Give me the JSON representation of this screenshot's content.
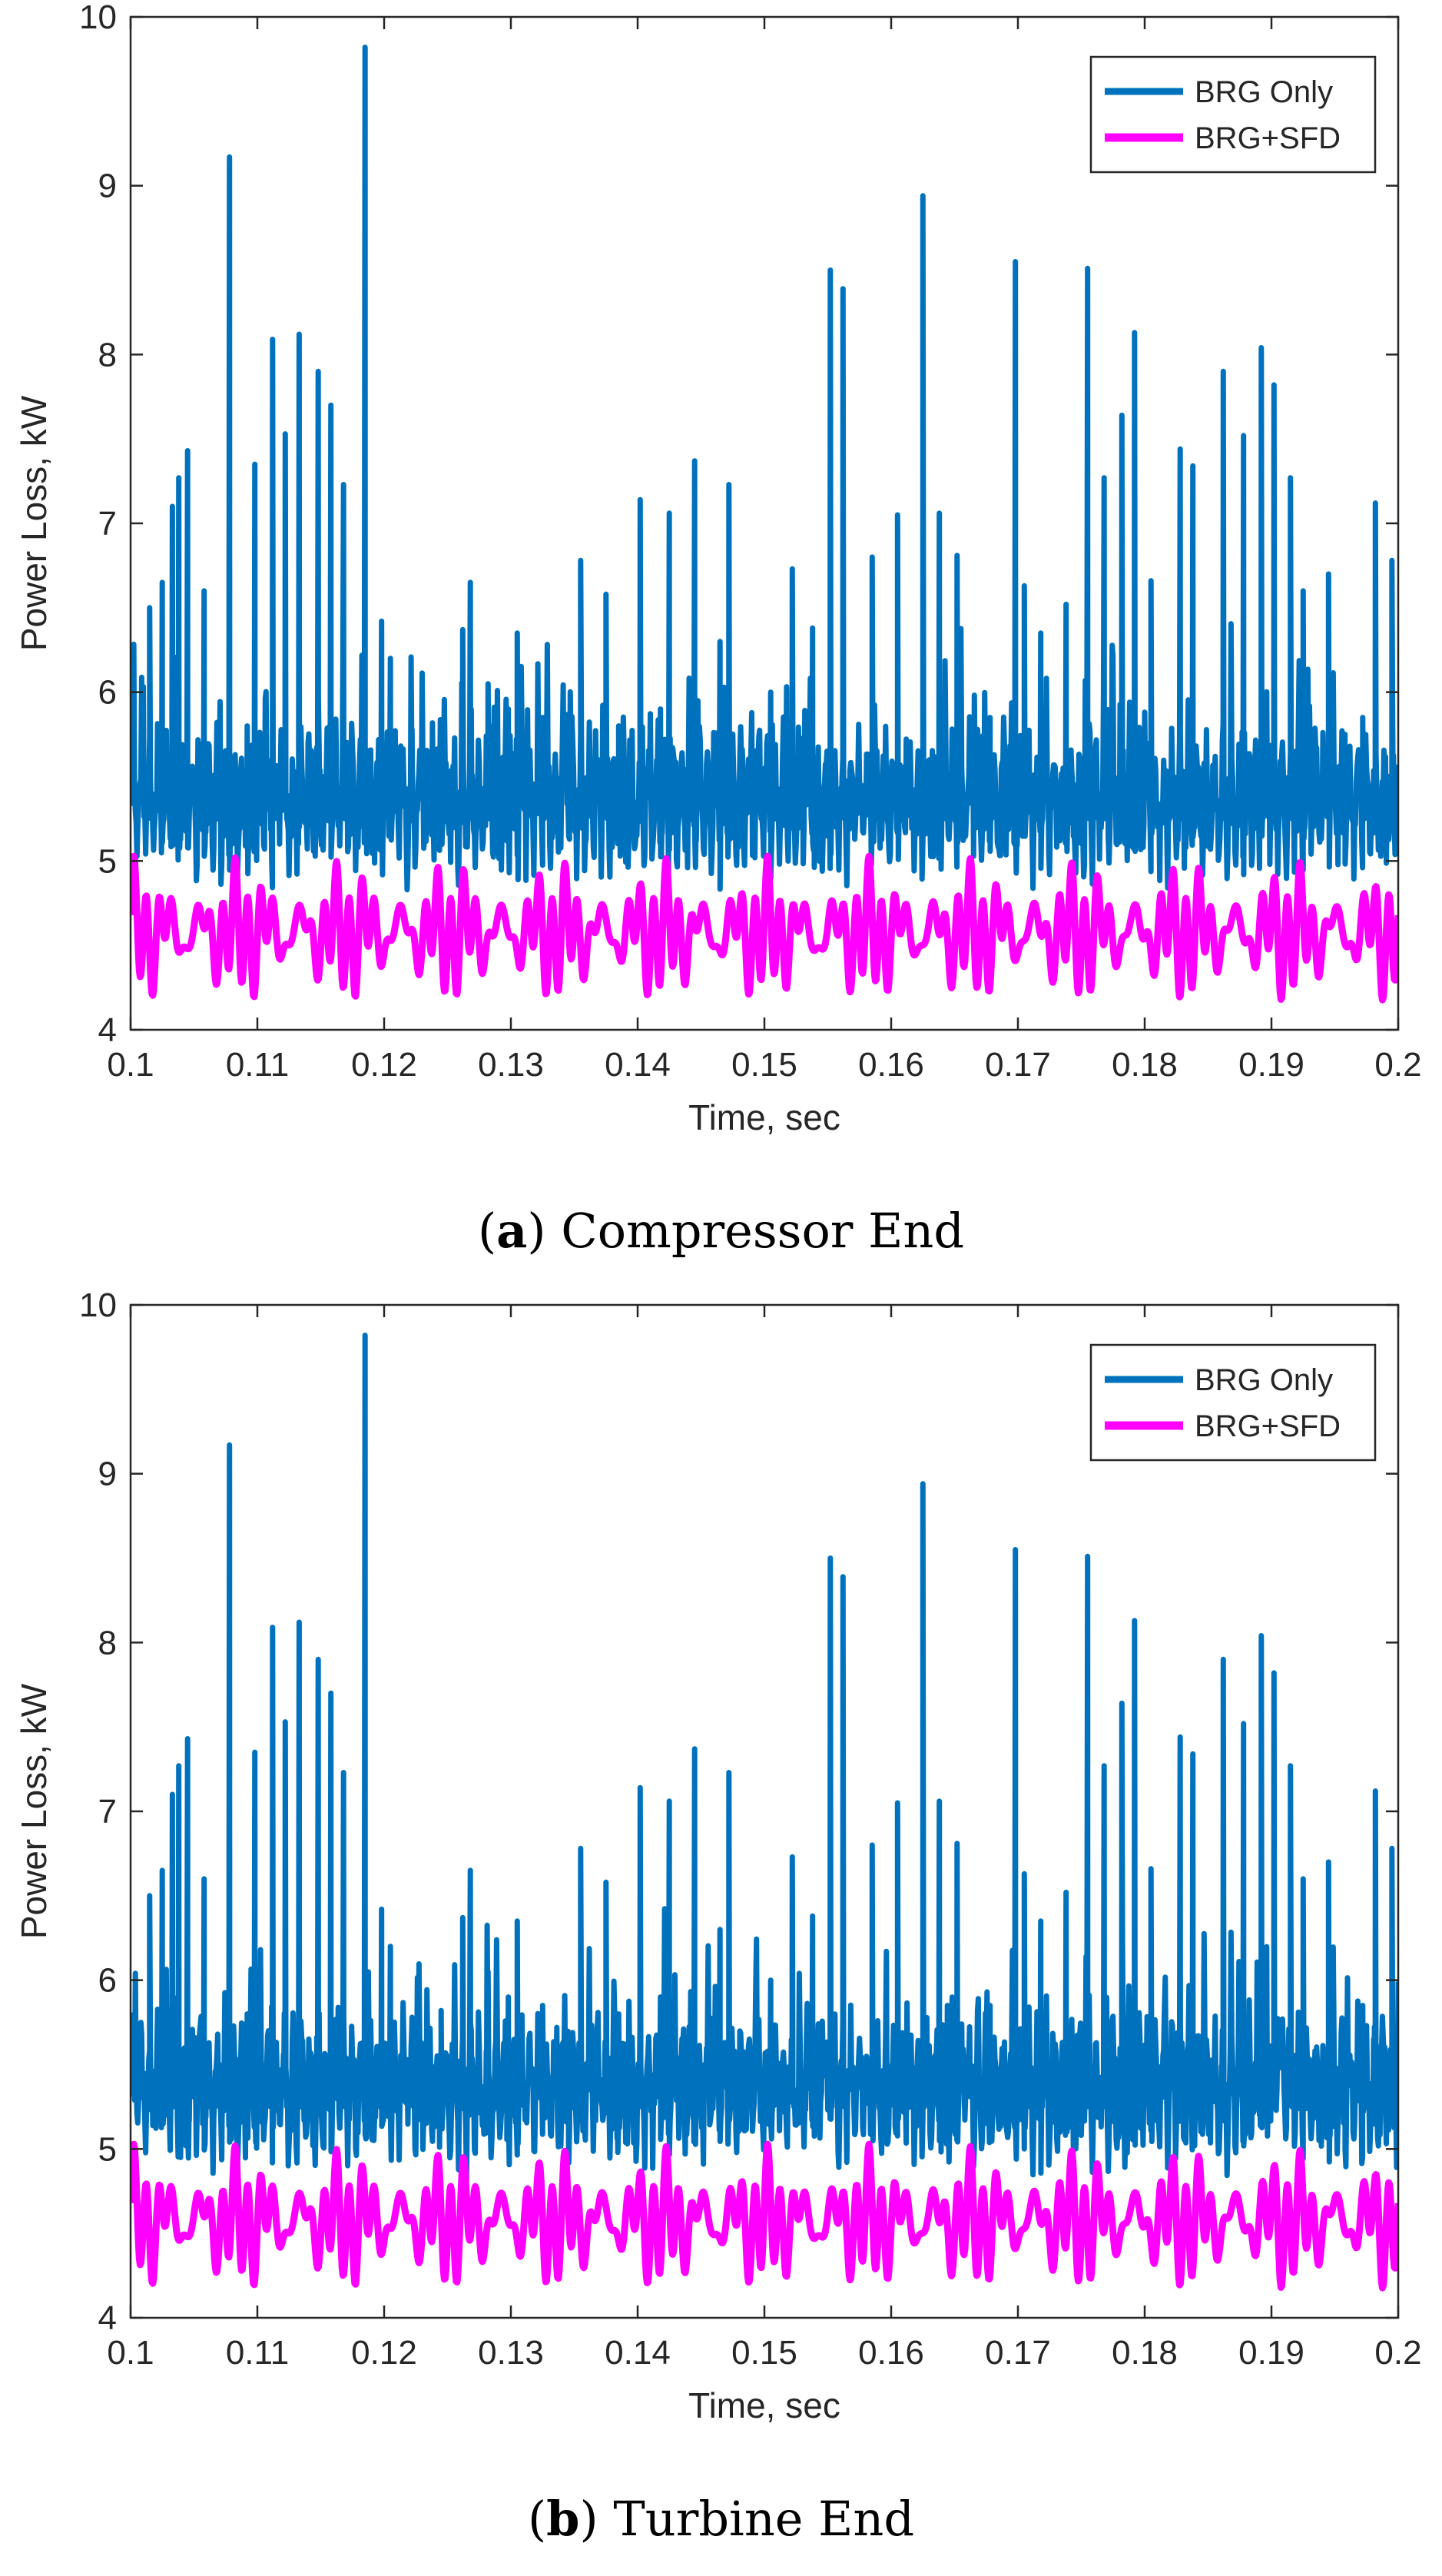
{
  "colors": {
    "brg_only": "#0072BD",
    "brg_sfd": "#FF00FF",
    "axis": "#262626"
  },
  "chart_data": [
    {
      "type": "line",
      "panel": "a",
      "caption_letter": "a",
      "caption_text": "Compressor End",
      "xlabel": "Time, sec",
      "ylabel": "Power Loss, kW",
      "xlim": [
        0.1,
        0.2
      ],
      "ylim": [
        4,
        10
      ],
      "xticks": [
        "0.1",
        "0.11",
        "0.12",
        "0.13",
        "0.14",
        "0.15",
        "0.16",
        "0.17",
        "0.18",
        "0.19",
        "0.2"
      ],
      "yticks": [
        "4",
        "5",
        "6",
        "7",
        "8",
        "9",
        "10"
      ],
      "legend_position": "top-right",
      "series": [
        {
          "name": "BRG Only",
          "color": "#0072BD",
          "baseline": 5.35,
          "osc_amplitude": 0.25,
          "osc_frequency_hz": 1500,
          "spikes": [
            {
              "t": 0.1015,
              "v": 6.5
            },
            {
              "t": 0.1025,
              "v": 6.65
            },
            {
              "t": 0.1033,
              "v": 7.1
            },
            {
              "t": 0.1038,
              "v": 7.27
            },
            {
              "t": 0.1045,
              "v": 7.43
            },
            {
              "t": 0.1058,
              "v": 6.6
            },
            {
              "t": 0.1078,
              "v": 9.17
            },
            {
              "t": 0.1092,
              "v": 5.8
            },
            {
              "t": 0.1098,
              "v": 7.35
            },
            {
              "t": 0.1112,
              "v": 8.09
            },
            {
              "t": 0.1122,
              "v": 7.53
            },
            {
              "t": 0.1133,
              "v": 8.12
            },
            {
              "t": 0.1148,
              "v": 7.9
            },
            {
              "t": 0.1158,
              "v": 7.7
            },
            {
              "t": 0.1168,
              "v": 7.23
            },
            {
              "t": 0.1185,
              "v": 9.82
            },
            {
              "t": 0.1198,
              "v": 6.42
            },
            {
              "t": 0.1205,
              "v": 6.2
            },
            {
              "t": 0.1222,
              "v": 5.78
            },
            {
              "t": 0.1245,
              "v": 5.82
            },
            {
              "t": 0.1262,
              "v": 6.37
            },
            {
              "t": 0.1268,
              "v": 6.65
            },
            {
              "t": 0.1282,
              "v": 6.05
            },
            {
              "t": 0.1298,
              "v": 5.9
            },
            {
              "t": 0.1305,
              "v": 6.35
            },
            {
              "t": 0.1325,
              "v": 5.85
            },
            {
              "t": 0.1355,
              "v": 6.78
            },
            {
              "t": 0.1375,
              "v": 6.58
            },
            {
              "t": 0.1385,
              "v": 5.8
            },
            {
              "t": 0.1402,
              "v": 7.14
            },
            {
              "t": 0.1418,
              "v": 5.9
            },
            {
              "t": 0.1425,
              "v": 7.06
            },
            {
              "t": 0.1445,
              "v": 7.37
            },
            {
              "t": 0.1465,
              "v": 6.3
            },
            {
              "t": 0.1472,
              "v": 7.23
            },
            {
              "t": 0.1505,
              "v": 6.0
            },
            {
              "t": 0.1522,
              "v": 6.73
            },
            {
              "t": 0.1538,
              "v": 6.38
            },
            {
              "t": 0.1552,
              "v": 8.5
            },
            {
              "t": 0.1562,
              "v": 8.39
            },
            {
              "t": 0.1585,
              "v": 6.8
            },
            {
              "t": 0.1605,
              "v": 7.05
            },
            {
              "t": 0.1625,
              "v": 8.94
            },
            {
              "t": 0.1638,
              "v": 7.06
            },
            {
              "t": 0.1652,
              "v": 6.81
            },
            {
              "t": 0.1678,
              "v": 5.85
            },
            {
              "t": 0.1698,
              "v": 8.55
            },
            {
              "t": 0.1705,
              "v": 6.63
            },
            {
              "t": 0.1718,
              "v": 6.35
            },
            {
              "t": 0.1738,
              "v": 6.52
            },
            {
              "t": 0.1755,
              "v": 8.51
            },
            {
              "t": 0.1768,
              "v": 7.27
            },
            {
              "t": 0.1782,
              "v": 7.64
            },
            {
              "t": 0.1792,
              "v": 8.13
            },
            {
              "t": 0.1805,
              "v": 6.66
            },
            {
              "t": 0.1828,
              "v": 7.44
            },
            {
              "t": 0.1838,
              "v": 7.34
            },
            {
              "t": 0.1862,
              "v": 7.9
            },
            {
              "t": 0.1878,
              "v": 7.52
            },
            {
              "t": 0.1892,
              "v": 8.04
            },
            {
              "t": 0.1902,
              "v": 7.82
            },
            {
              "t": 0.1915,
              "v": 7.27
            },
            {
              "t": 0.1925,
              "v": 6.6
            },
            {
              "t": 0.1945,
              "v": 6.7
            },
            {
              "t": 0.1958,
              "v": 5.75
            },
            {
              "t": 0.1972,
              "v": 5.85
            },
            {
              "t": 0.1982,
              "v": 7.12
            },
            {
              "t": 0.1995,
              "v": 6.78
            }
          ]
        },
        {
          "name": "BRG+SFD",
          "color": "#FF00FF",
          "min": 4.18,
          "max": 5.08,
          "osc_frequency_hz": 1000
        }
      ]
    },
    {
      "type": "line",
      "panel": "b",
      "caption_letter": "b",
      "caption_text": "Turbine End",
      "xlabel": "Time, sec",
      "ylabel": "Power Loss, kW",
      "xlim": [
        0.1,
        0.2
      ],
      "ylim": [
        4,
        10
      ],
      "xticks": [
        "0.1",
        "0.11",
        "0.12",
        "0.13",
        "0.14",
        "0.15",
        "0.16",
        "0.17",
        "0.18",
        "0.19",
        "0.2"
      ],
      "yticks": [
        "4",
        "5",
        "6",
        "7",
        "8",
        "9",
        "10"
      ],
      "legend_position": "top-right",
      "series": [
        {
          "name": "BRG Only",
          "color": "#0072BD",
          "baseline": 5.35,
          "osc_amplitude": 0.25,
          "osc_frequency_hz": 1500,
          "spikes": [
            {
              "t": 0.1015,
              "v": 6.5
            },
            {
              "t": 0.1025,
              "v": 6.65
            },
            {
              "t": 0.1033,
              "v": 7.1
            },
            {
              "t": 0.1038,
              "v": 7.27
            },
            {
              "t": 0.1045,
              "v": 7.43
            },
            {
              "t": 0.1058,
              "v": 6.6
            },
            {
              "t": 0.1078,
              "v": 9.17
            },
            {
              "t": 0.1092,
              "v": 5.8
            },
            {
              "t": 0.1098,
              "v": 7.35
            },
            {
              "t": 0.1112,
              "v": 8.09
            },
            {
              "t": 0.1122,
              "v": 7.53
            },
            {
              "t": 0.1133,
              "v": 8.12
            },
            {
              "t": 0.1148,
              "v": 7.9
            },
            {
              "t": 0.1158,
              "v": 7.7
            },
            {
              "t": 0.1168,
              "v": 7.23
            },
            {
              "t": 0.1185,
              "v": 9.82
            },
            {
              "t": 0.1198,
              "v": 6.42
            },
            {
              "t": 0.1205,
              "v": 6.2
            },
            {
              "t": 0.1222,
              "v": 5.78
            },
            {
              "t": 0.1245,
              "v": 5.82
            },
            {
              "t": 0.1262,
              "v": 6.37
            },
            {
              "t": 0.1268,
              "v": 6.65
            },
            {
              "t": 0.1282,
              "v": 6.05
            },
            {
              "t": 0.1298,
              "v": 5.9
            },
            {
              "t": 0.1305,
              "v": 6.35
            },
            {
              "t": 0.1325,
              "v": 5.85
            },
            {
              "t": 0.1355,
              "v": 6.78
            },
            {
              "t": 0.1375,
              "v": 6.58
            },
            {
              "t": 0.1385,
              "v": 5.8
            },
            {
              "t": 0.1402,
              "v": 7.14
            },
            {
              "t": 0.1418,
              "v": 5.9
            },
            {
              "t": 0.1425,
              "v": 7.06
            },
            {
              "t": 0.1445,
              "v": 7.37
            },
            {
              "t": 0.1465,
              "v": 6.3
            },
            {
              "t": 0.1472,
              "v": 7.23
            },
            {
              "t": 0.1505,
              "v": 6.0
            },
            {
              "t": 0.1522,
              "v": 6.73
            },
            {
              "t": 0.1538,
              "v": 6.38
            },
            {
              "t": 0.1552,
              "v": 8.5
            },
            {
              "t": 0.1562,
              "v": 8.39
            },
            {
              "t": 0.1585,
              "v": 6.8
            },
            {
              "t": 0.1605,
              "v": 7.05
            },
            {
              "t": 0.1625,
              "v": 8.94
            },
            {
              "t": 0.1638,
              "v": 7.06
            },
            {
              "t": 0.1652,
              "v": 6.81
            },
            {
              "t": 0.1678,
              "v": 5.85
            },
            {
              "t": 0.1698,
              "v": 8.55
            },
            {
              "t": 0.1705,
              "v": 6.63
            },
            {
              "t": 0.1718,
              "v": 6.35
            },
            {
              "t": 0.1738,
              "v": 6.52
            },
            {
              "t": 0.1755,
              "v": 8.51
            },
            {
              "t": 0.1768,
              "v": 7.27
            },
            {
              "t": 0.1782,
              "v": 7.64
            },
            {
              "t": 0.1792,
              "v": 8.13
            },
            {
              "t": 0.1805,
              "v": 6.66
            },
            {
              "t": 0.1828,
              "v": 7.44
            },
            {
              "t": 0.1838,
              "v": 7.34
            },
            {
              "t": 0.1862,
              "v": 7.9
            },
            {
              "t": 0.1878,
              "v": 7.52
            },
            {
              "t": 0.1892,
              "v": 8.04
            },
            {
              "t": 0.1902,
              "v": 7.82
            },
            {
              "t": 0.1915,
              "v": 7.27
            },
            {
              "t": 0.1925,
              "v": 6.6
            },
            {
              "t": 0.1945,
              "v": 6.7
            },
            {
              "t": 0.1958,
              "v": 5.75
            },
            {
              "t": 0.1972,
              "v": 5.85
            },
            {
              "t": 0.1982,
              "v": 7.12
            },
            {
              "t": 0.1995,
              "v": 6.78
            }
          ]
        },
        {
          "name": "BRG+SFD",
          "color": "#FF00FF",
          "min": 4.18,
          "max": 5.08,
          "osc_frequency_hz": 1000
        }
      ]
    }
  ]
}
